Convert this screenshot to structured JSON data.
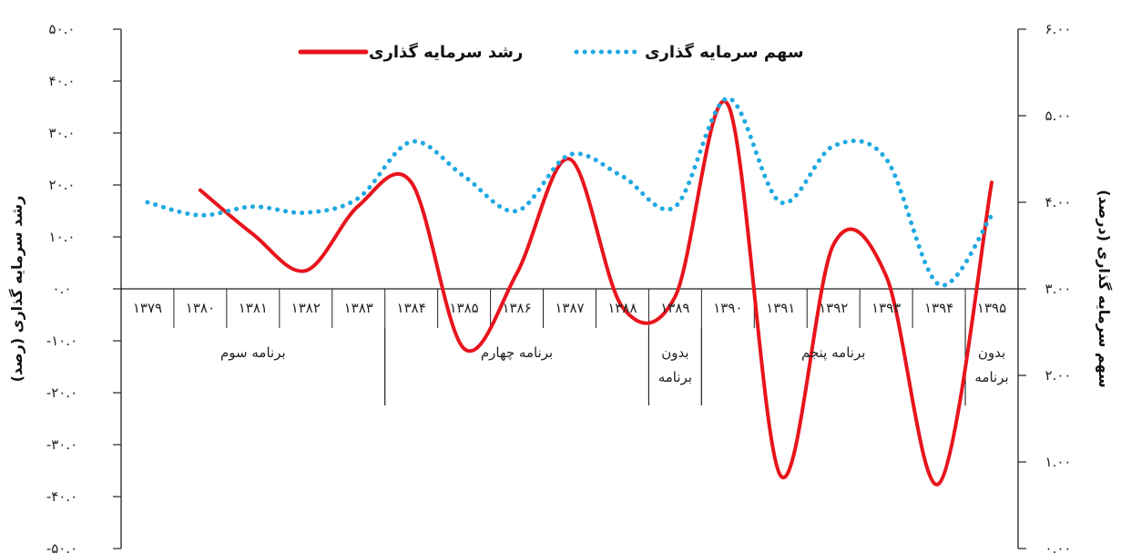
{
  "chart_data": {
    "type": "line",
    "x": [
      "۱۳۷۹",
      "۱۳۸۰",
      "۱۳۸۱",
      "۱۳۸۲",
      "۱۳۸۳",
      "۱۳۸۴",
      "۱۳۸۵",
      "۱۳۸۶",
      "۱۳۸۷",
      "۱۳۸۸",
      "۱۳۸۹",
      "۱۳۹۰",
      "۱۳۹۱",
      "۱۳۹۲",
      "۱۳۹۳",
      "۱۳۹۴",
      "۱۳۹۵"
    ],
    "series": [
      {
        "name": "رشد سرمایه گذاری",
        "axis": "left",
        "style": "solid",
        "color": "#e8141c",
        "values": [
          null,
          19.0,
          10.5,
          3.5,
          16.0,
          20.5,
          -11.5,
          3.0,
          25.0,
          -3.5,
          -1.5,
          35.5,
          -36.0,
          8.5,
          2.5,
          -37.5,
          20.5
        ]
      },
      {
        "name": "سهم سرمایه گذاری",
        "axis": "right",
        "style": "dotted",
        "color": "#1fa9e1",
        "values": [
          4.0,
          3.85,
          3.95,
          3.88,
          4.05,
          4.7,
          4.3,
          3.9,
          4.55,
          4.3,
          3.95,
          5.2,
          4.0,
          4.65,
          4.5,
          3.05,
          3.85
        ]
      }
    ],
    "left_axis": {
      "label": "رشد سرمایه گذاری (رصد)",
      "ylim": [
        -50,
        50
      ],
      "ticks": [
        "۵۰.۰",
        "۴۰.۰",
        "۳۰.۰",
        "۲۰.۰",
        "۱۰.۰",
        "۰.۰",
        "-۱۰.۰",
        "-۲۰.۰",
        "-۳۰.۰",
        "-۴۰.۰",
        "-۵۰.۰"
      ]
    },
    "right_axis": {
      "label": "سهم سرمایه گذاری (درصد)",
      "ylim": [
        0,
        6
      ],
      "ticks": [
        "۶.۰۰",
        "۵.۰۰",
        "۴.۰۰",
        "۳.۰۰",
        "۲.۰۰",
        "۱.۰۰",
        "۰.۰۰"
      ]
    },
    "program_groups": [
      {
        "label_lines": [
          "برنامه سوم"
        ],
        "from": 0,
        "to": 5
      },
      {
        "label_lines": [
          "برنامه چهارم"
        ],
        "from": 5,
        "to": 10
      },
      {
        "label_lines": [
          "بدون",
          "برنامه"
        ],
        "from": 10,
        "to": 11
      },
      {
        "label_lines": [
          "برنامه پنجم"
        ],
        "from": 11,
        "to": 16
      },
      {
        "label_lines": [
          "بدون",
          "برنامه"
        ],
        "from": 16,
        "to": 17
      }
    ],
    "legend": {
      "placement": "top-center",
      "items": [
        "رشد سرمایه گذاری",
        "سهم سرمایه گذاری"
      ]
    },
    "grid": false
  }
}
